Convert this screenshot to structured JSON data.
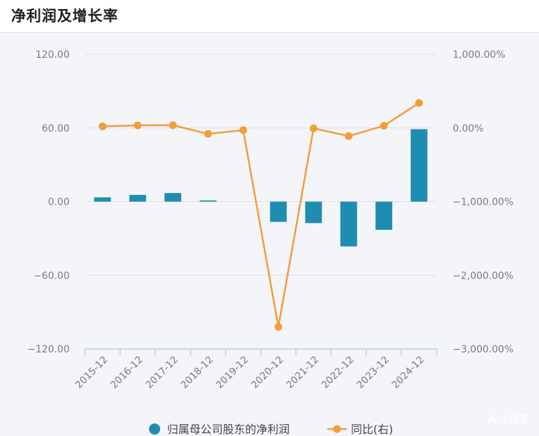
{
  "header": {
    "title": "净利润及增长率"
  },
  "chart_data": {
    "type": "bar+line",
    "categories": [
      "2015-12",
      "2016-12",
      "2017-12",
      "2018-12",
      "2019-12",
      "2020-12",
      "2021-12",
      "2022-12",
      "2023-12",
      "2024-12"
    ],
    "series": [
      {
        "name": "归属母公司股东的净利润",
        "type": "bar",
        "axis": "left",
        "values": [
          3.5,
          5.5,
          7.0,
          1.0,
          null,
          -16.5,
          -17.5,
          -36.5,
          -23.0,
          59.0
        ]
      },
      {
        "name": "同比(右)",
        "type": "line",
        "axis": "right",
        "values": [
          22,
          35,
          38,
          -80,
          -30,
          -2700,
          -5,
          -110,
          30,
          340
        ]
      }
    ],
    "left_axis": {
      "ylim": [
        -120,
        120
      ],
      "ticks": [
        "120.00",
        "60.00",
        "0.00",
        "−60.00",
        "−120.00"
      ],
      "tick_values": [
        120,
        60,
        0,
        -60,
        -120
      ]
    },
    "right_axis": {
      "ylim": [
        -3000,
        1000
      ],
      "ticks": [
        "1,000.00%",
        "0.00%",
        "−1,000.00%",
        "−2,000.00%",
        "−3,000.00%"
      ],
      "tick_values": [
        1000,
        0,
        -1000,
        -2000,
        -3000
      ]
    },
    "grid": true,
    "legend_position": "bottom",
    "colors": {
      "bar": "#1f8db0",
      "line": "#f29d3a"
    }
  },
  "watermark": "⁂@研客"
}
